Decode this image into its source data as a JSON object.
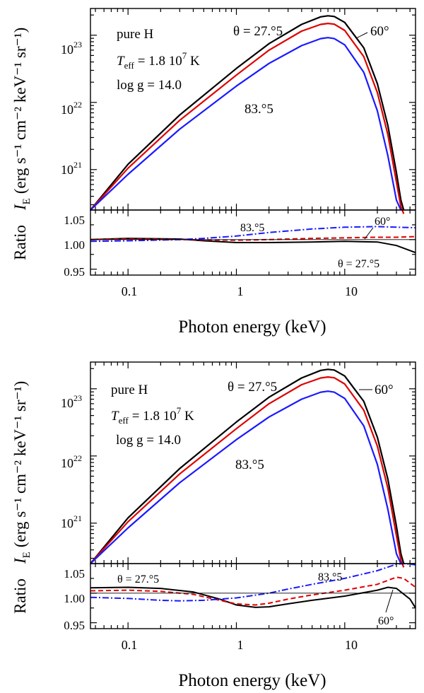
{
  "figure": {
    "panels": [
      {
        "text": {
          "composition": "pure H",
          "teff_main": "T",
          "teff_sub": "eff",
          "teff_value": "= 1.8 10",
          "teff_exp": "7",
          "teff_unit": " K",
          "logg": "log g = 14.0",
          "ylabel_I": "I",
          "ylabel_Isub": "E",
          "ylabel_units": "(erg s⁻¹ cm⁻² keV⁻¹ sr⁻¹)",
          "ratio_label": "Ratio",
          "xlabel": "Photon energy  (keV)",
          "main_lbl_theta": "θ = 27.°5",
          "main_lbl_60": "60°",
          "main_lbl_83": "83.°5",
          "ratio_lbl_theta": "θ = 27.°5",
          "ratio_lbl_60": "60°",
          "ratio_lbl_83": "83.°5",
          "ytick_labels": [
            "10",
            "10",
            "10"
          ],
          "ytick_exps": [
            "21",
            "22",
            "23"
          ],
          "ratio_ticks": [
            "0.95",
            "1.00",
            "1.05"
          ],
          "xtick_labels": [
            "0.1",
            "1",
            "10"
          ]
        }
      },
      {
        "text": {
          "composition": "pure H",
          "teff_main": "T",
          "teff_sub": "eff",
          "teff_value": "= 1.8 10",
          "teff_exp": "7",
          "teff_unit": " K",
          "logg": "log g = 14.0",
          "ylabel_I": "I",
          "ylabel_Isub": "E",
          "ylabel_units": "(erg s⁻¹ cm⁻² keV⁻¹ sr⁻¹)",
          "ratio_label": "Ratio",
          "xlabel": "Photon energy  (keV)",
          "main_lbl_theta": "θ = 27.°5",
          "main_lbl_60": "60°",
          "main_lbl_83": "83.°5",
          "ratio_lbl_theta": "θ = 27.°5",
          "ratio_lbl_60": "60°",
          "ratio_lbl_83": "83.°5",
          "ytick_labels": [
            "10",
            "10",
            "10"
          ],
          "ytick_exps": [
            "21",
            "22",
            "23"
          ],
          "ratio_ticks": [
            "0.95",
            "1.00",
            "1.05"
          ],
          "xtick_labels": [
            "0.1",
            "1",
            "10"
          ]
        }
      }
    ]
  },
  "chart_data": [
    {
      "type": "line",
      "subplot": "top panel, intensity spectra",
      "xscale": "log",
      "yscale": "log",
      "xlim": [
        0.045,
        45
      ],
      "ylim": [
        2.5e+20,
        2.5e+23
      ],
      "grid": false,
      "series": [
        {
          "name": "θ = 27.°5",
          "color": "#000000",
          "x": [
            0.045,
            0.1,
            0.3,
            1,
            2,
            4,
            6,
            7,
            8,
            10,
            15,
            20,
            25,
            30,
            33,
            35
          ],
          "y": [
            2.5e+20,
            1.2e+21,
            6.5e+21,
            3.2e+22,
            7.5e+22,
            1.45e+23,
            1.88e+23,
            1.95e+23,
            1.9e+23,
            1.55e+23,
            6.5e+22,
            1.9e+22,
            4.5e+21,
            9e+20,
            3.5e+20,
            2.5e+20
          ]
        },
        {
          "name": "60°",
          "color": "#e00000",
          "x": [
            0.045,
            0.1,
            0.3,
            1,
            2,
            4,
            6,
            7,
            8,
            10,
            15,
            20,
            25,
            30,
            33,
            35
          ],
          "y": [
            2.5e+20,
            1.05e+21,
            5.4e+21,
            2.55e+22,
            6e+22,
            1.15e+23,
            1.45e+23,
            1.5e+23,
            1.46e+23,
            1.18e+23,
            4.8e+22,
            1.4e+22,
            3.3e+21,
            6.5e+20,
            2.8e+20,
            2.2e+20
          ]
        },
        {
          "name": "83.°5",
          "color": "#1a1aff",
          "x": [
            0.045,
            0.1,
            0.3,
            1,
            2,
            4,
            6,
            7,
            8,
            10,
            15,
            20,
            25,
            30,
            33
          ],
          "y": [
            2.5e+20,
            8.5e+20,
            4e+21,
            1.75e+22,
            3.8e+22,
            7e+22,
            8.9e+22,
            9.2e+22,
            8.9e+22,
            7.2e+22,
            2.8e+22,
            7.5e+21,
            1.6e+21,
            3.5e+20,
            2.5e+20
          ]
        }
      ]
    },
    {
      "type": "line",
      "subplot": "top panel, ratio",
      "xscale": "log",
      "xlim": [
        0.045,
        45
      ],
      "ylim": [
        0.94,
        1.05
      ],
      "series": [
        {
          "name": "θ = 27.°5",
          "color": "#000000",
          "style": "solid",
          "x": [
            0.045,
            0.1,
            0.3,
            0.5,
            1,
            2,
            5,
            10,
            20,
            30,
            45
          ],
          "y": [
            1.0,
            1.002,
            1.001,
            0.998,
            0.995,
            0.995,
            0.996,
            0.997,
            0.996,
            0.99,
            0.978
          ]
        },
        {
          "name": "60°",
          "color": "#e00000",
          "style": "dashed",
          "x": [
            0.045,
            0.1,
            0.3,
            1,
            2,
            5,
            10,
            20,
            30,
            45
          ],
          "y": [
            1.0,
            1.001,
            1.0,
            0.999,
            1.0,
            1.002,
            1.003,
            1.004,
            1.004,
            1.005
          ]
        },
        {
          "name": "83.°5",
          "color": "#1a1aff",
          "style": "dashdot",
          "x": [
            0.045,
            0.1,
            0.3,
            0.5,
            1,
            2,
            5,
            10,
            20,
            45
          ],
          "y": [
            0.997,
            0.998,
            1.0,
            1.002,
            1.006,
            1.012,
            1.018,
            1.021,
            1.022,
            1.02
          ]
        },
        {
          "name": "",
          "color": "#000000",
          "style": "reference",
          "x": [
            0.045,
            45
          ],
          "y": [
            1.0,
            1.0
          ]
        }
      ]
    },
    {
      "type": "line",
      "subplot": "bottom panel, intensity spectra",
      "xscale": "log",
      "yscale": "log",
      "xlim": [
        0.045,
        45
      ],
      "ylim": [
        2.5e+20,
        2.5e+23
      ],
      "grid": false,
      "series": [
        {
          "name": "θ = 27.°5",
          "color": "#000000",
          "x": [
            0.045,
            0.1,
            0.3,
            1,
            2,
            4,
            6,
            7,
            8,
            10,
            15,
            20,
            25,
            30,
            33,
            35
          ],
          "y": [
            2.5e+20,
            1.2e+21,
            6.5e+21,
            3.2e+22,
            7.5e+22,
            1.45e+23,
            1.88e+23,
            1.95e+23,
            1.9e+23,
            1.55e+23,
            6.5e+22,
            1.9e+22,
            4.5e+21,
            9e+20,
            3.5e+20,
            2.5e+20
          ]
        },
        {
          "name": "60°",
          "color": "#e00000",
          "x": [
            0.045,
            0.1,
            0.3,
            1,
            2,
            4,
            6,
            7,
            8,
            10,
            15,
            20,
            25,
            30,
            33,
            35
          ],
          "y": [
            2.5e+20,
            1.05e+21,
            5.4e+21,
            2.55e+22,
            6e+22,
            1.15e+23,
            1.45e+23,
            1.5e+23,
            1.46e+23,
            1.18e+23,
            4.8e+22,
            1.4e+22,
            3.3e+21,
            6.5e+20,
            2.8e+20,
            2.2e+20
          ]
        },
        {
          "name": "83.°5",
          "color": "#1a1aff",
          "x": [
            0.045,
            0.1,
            0.3,
            1,
            2,
            4,
            6,
            7,
            8,
            10,
            15,
            20,
            25,
            30,
            33
          ],
          "y": [
            2.5e+20,
            8.5e+20,
            4e+21,
            1.75e+22,
            3.8e+22,
            7e+22,
            8.9e+22,
            9.2e+22,
            8.9e+22,
            7.2e+22,
            2.8e+22,
            7.5e+21,
            1.6e+21,
            3.5e+20,
            2.5e+20
          ]
        }
      ]
    },
    {
      "type": "line",
      "subplot": "bottom panel, ratio",
      "xscale": "log",
      "xlim": [
        0.045,
        45
      ],
      "ylim": [
        0.94,
        1.05
      ],
      "series": [
        {
          "name": "θ = 27.°5",
          "color": "#000000",
          "style": "solid",
          "x": [
            0.045,
            0.1,
            0.2,
            0.4,
            0.7,
            1,
            1.5,
            2,
            3,
            5,
            10,
            20,
            25,
            30,
            40,
            45
          ],
          "y": [
            1.009,
            1.01,
            1.008,
            1.002,
            0.99,
            0.98,
            0.976,
            0.977,
            0.982,
            0.988,
            0.995,
            1.005,
            1.01,
            1.008,
            0.99,
            0.975
          ]
        },
        {
          "name": "60°",
          "color": "#e00000",
          "style": "dashed",
          "x": [
            0.045,
            0.1,
            0.2,
            0.4,
            0.7,
            1,
            1.5,
            2,
            3,
            5,
            10,
            20,
            30,
            35,
            45
          ],
          "y": [
            1.004,
            1.005,
            1.003,
            0.998,
            0.988,
            0.982,
            0.98,
            0.983,
            0.99,
            0.997,
            1.005,
            1.015,
            1.027,
            1.025,
            1.01
          ]
        },
        {
          "name": "83.°5",
          "color": "#1a1aff",
          "style": "dashdot",
          "x": [
            0.045,
            0.1,
            0.2,
            0.3,
            0.5,
            1,
            2,
            3,
            5,
            10,
            20,
            30,
            35,
            45
          ],
          "y": [
            0.993,
            0.991,
            0.988,
            0.987,
            0.988,
            0.992,
            1.0,
            1.007,
            1.015,
            1.025,
            1.038,
            1.049,
            1.05,
            1.048
          ]
        },
        {
          "name": "",
          "color": "#000000",
          "style": "reference",
          "x": [
            0.045,
            45
          ],
          "y": [
            1.0,
            1.0
          ]
        }
      ]
    }
  ]
}
